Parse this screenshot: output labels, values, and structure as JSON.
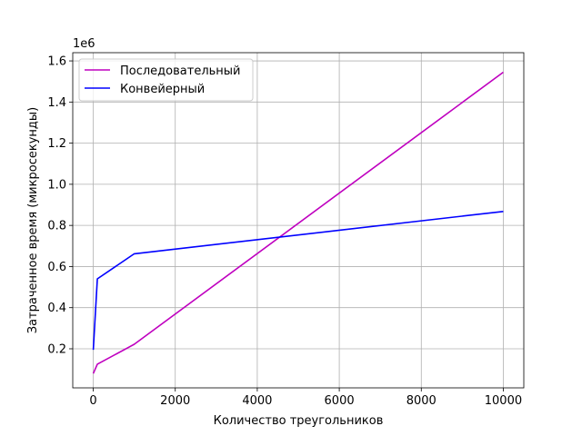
{
  "chart_data": {
    "type": "line",
    "title": "",
    "xlabel": "Количество треугольников",
    "ylabel": "Затраченное время (микросекунды)",
    "y_offset_text": "1e6",
    "xlim": [
      -500,
      10500
    ],
    "ylim": [
      0.01,
      1.64
    ],
    "x_ticks": [
      0,
      2000,
      4000,
      6000,
      8000,
      10000
    ],
    "x_tick_labels": [
      "0",
      "2000",
      "4000",
      "6000",
      "8000",
      "10000"
    ],
    "y_ticks": [
      0.2,
      0.4,
      0.6,
      0.8,
      1.0,
      1.2,
      1.4,
      1.6
    ],
    "y_tick_labels": [
      "0.2",
      "0.4",
      "0.6",
      "0.8",
      "1.0",
      "1.2",
      "1.4",
      "1.6"
    ],
    "grid": true,
    "legend_position": "top-left",
    "series": [
      {
        "name": "Последовательный",
        "color": "#bf00bf",
        "x": [
          1,
          100,
          1000,
          10000
        ],
        "y": [
          0.08,
          0.125,
          0.222,
          1.545
        ]
      },
      {
        "name": "Конвейерный",
        "color": "#0000ff",
        "x": [
          1,
          100,
          1000,
          10000
        ],
        "y": [
          0.195,
          0.54,
          0.662,
          0.868
        ]
      }
    ]
  }
}
